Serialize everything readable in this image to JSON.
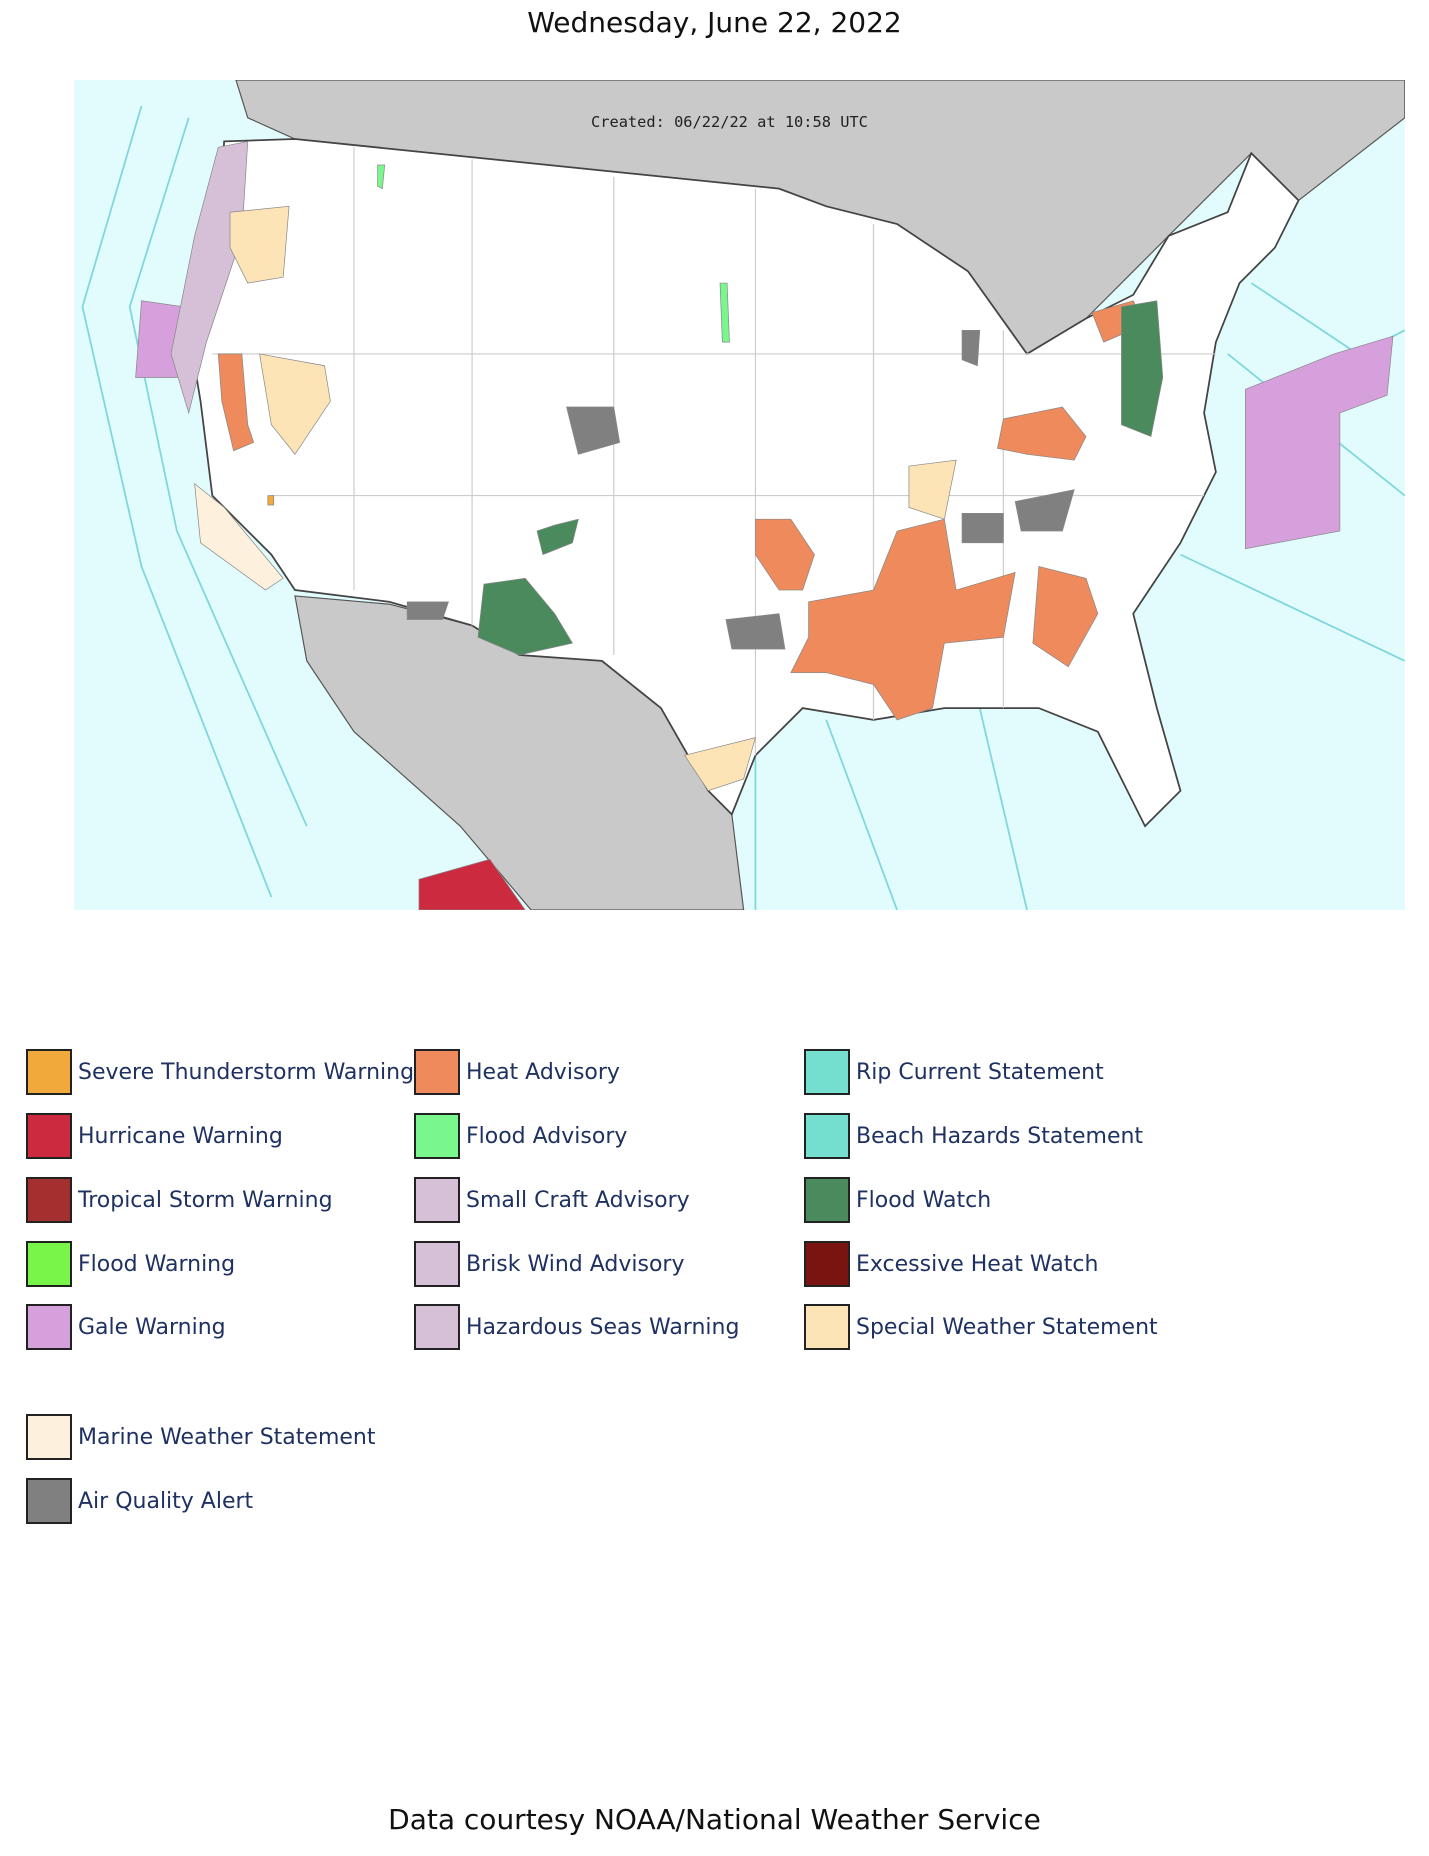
{
  "title": "Wednesday, June 22, 2022",
  "map": {
    "created": "Created: 06/22/22 at 10:58 UTC"
  },
  "legend": {
    "columns": [
      [
        {
          "label": "Severe Thunderstorm Warning",
          "color": "#f2a93b"
        },
        {
          "label": "Hurricane Warning",
          "color": "#cc2b3f"
        },
        {
          "label": "Tropical Storm Warning",
          "color": "#a3302f"
        },
        {
          "label": "Flood Warning",
          "color": "#79f54a"
        },
        {
          "label": "Gale Warning",
          "color": "#d6a0dc"
        }
      ],
      [
        {
          "label": "Heat Advisory",
          "color": "#ee8a5c"
        },
        {
          "label": "Flood Advisory",
          "color": "#7af78c"
        },
        {
          "label": "Small Craft Advisory",
          "color": "#d6c0d8"
        },
        {
          "label": "Brisk Wind Advisory",
          "color": "#d6c0d8"
        },
        {
          "label": "Hazardous Seas Warning",
          "color": "#d6c0d8"
        }
      ],
      [
        {
          "label": "Rip Current Statement",
          "color": "#74dfcf"
        },
        {
          "label": "Beach Hazards Statement",
          "color": "#74dfcf"
        },
        {
          "label": "Flood Watch",
          "color": "#4a8a5c"
        },
        {
          "label": "Excessive Heat Watch",
          "color": "#7a1410"
        },
        {
          "label": "Special Weather Statement",
          "color": "#fde4b6"
        }
      ]
    ],
    "extra": [
      {
        "label": "Marine Weather Statement",
        "color": "#fdf0dc"
      },
      {
        "label": "Air Quality Alert",
        "color": "#808080"
      }
    ]
  },
  "footer": "Data courtesy NOAA/National Weather Service"
}
